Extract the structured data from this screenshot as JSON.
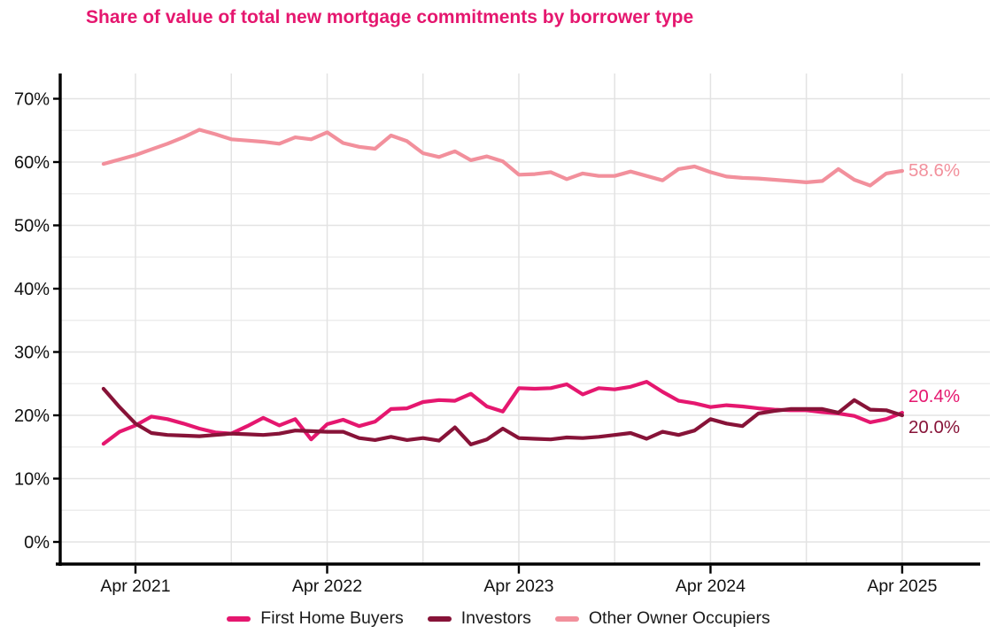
{
  "title": "Share of value of total new mortgage commitments by borrower type",
  "colors": {
    "title": "#E5176F",
    "first_home_buyers": "#E5176F",
    "investors": "#871338",
    "other_owner_occupiers": "#F2909C",
    "axis": "#000000",
    "grid_major": "#E3E3E3",
    "grid_minor": "#EDEDED",
    "tick_text": "#111111"
  },
  "chart_data": {
    "type": "line",
    "x": [
      "Feb 2021",
      "Mar 2021",
      "Apr 2021",
      "May 2021",
      "Jun 2021",
      "Jul 2021",
      "Aug 2021",
      "Sep 2021",
      "Oct 2021",
      "Nov 2021",
      "Dec 2021",
      "Jan 2022",
      "Feb 2022",
      "Mar 2022",
      "Apr 2022",
      "May 2022",
      "Jun 2022",
      "Jul 2022",
      "Aug 2022",
      "Sep 2022",
      "Oct 2022",
      "Nov 2022",
      "Dec 2022",
      "Jan 2023",
      "Feb 2023",
      "Mar 2023",
      "Apr 2023",
      "May 2023",
      "Jun 2023",
      "Jul 2023",
      "Aug 2023",
      "Sep 2023",
      "Oct 2023",
      "Nov 2023",
      "Dec 2023",
      "Jan 2024",
      "Feb 2024",
      "Mar 2024",
      "Apr 2024",
      "May 2024",
      "Jun 2024",
      "Jul 2024",
      "Aug 2024",
      "Sep 2024",
      "Oct 2024",
      "Nov 2024",
      "Dec 2024",
      "Jan 2025",
      "Feb 2025",
      "Mar 2025",
      "Apr 2025"
    ],
    "series": [
      {
        "name": "First Home Buyers",
        "color_key": "first_home_buyers",
        "end_label": "20.4%",
        "values": [
          15.5,
          17.4,
          18.4,
          19.8,
          19.4,
          18.7,
          17.9,
          17.3,
          17.1,
          18.3,
          19.6,
          18.4,
          19.4,
          16.2,
          18.6,
          19.3,
          18.3,
          19.0,
          21.0,
          21.1,
          22.1,
          22.4,
          22.3,
          23.4,
          21.4,
          20.6,
          24.3,
          24.2,
          24.3,
          24.9,
          23.3,
          24.3,
          24.1,
          24.5,
          25.3,
          23.7,
          22.3,
          21.9,
          21.3,
          21.6,
          21.4,
          21.1,
          20.9,
          20.8,
          20.8,
          20.5,
          20.3,
          19.9,
          18.9,
          19.4,
          20.4
        ]
      },
      {
        "name": "Investors",
        "color_key": "investors",
        "end_label": "20.0%",
        "values": [
          24.2,
          21.3,
          18.7,
          17.2,
          16.9,
          16.8,
          16.7,
          16.9,
          17.1,
          17.0,
          16.9,
          17.1,
          17.6,
          17.5,
          17.4,
          17.4,
          16.4,
          16.1,
          16.6,
          16.1,
          16.4,
          16.0,
          18.1,
          15.4,
          16.2,
          17.9,
          16.4,
          16.3,
          16.2,
          16.5,
          16.4,
          16.6,
          16.9,
          17.2,
          16.3,
          17.4,
          16.9,
          17.6,
          19.4,
          18.7,
          18.3,
          20.3,
          20.7,
          21.0,
          21.0,
          21.0,
          20.4,
          22.4,
          20.9,
          20.8,
          20.0
        ]
      },
      {
        "name": "Other Owner Occupiers",
        "color_key": "other_owner_occupiers",
        "end_label": "58.6%",
        "values": [
          59.7,
          60.4,
          61.1,
          62.0,
          62.9,
          63.9,
          65.1,
          64.4,
          63.6,
          63.4,
          63.2,
          62.9,
          63.9,
          63.6,
          64.7,
          63.0,
          62.4,
          62.1,
          64.2,
          63.3,
          61.4,
          60.8,
          61.7,
          60.3,
          60.9,
          60.1,
          58.0,
          58.1,
          58.4,
          57.3,
          58.2,
          57.8,
          57.8,
          58.5,
          57.8,
          57.1,
          58.9,
          59.3,
          58.4,
          57.7,
          57.5,
          57.4,
          57.2,
          57.0,
          56.8,
          57.0,
          58.9,
          57.2,
          56.3,
          58.2,
          58.6
        ]
      }
    ],
    "ylim": [
      0,
      70
    ],
    "y_ticks": [
      {
        "value": 0,
        "label": "0%"
      },
      {
        "value": 10,
        "label": "10%"
      },
      {
        "value": 20,
        "label": "20%"
      },
      {
        "value": 30,
        "label": "30%"
      },
      {
        "value": 40,
        "label": "40%"
      },
      {
        "value": 50,
        "label": "50%"
      },
      {
        "value": 60,
        "label": "60%"
      },
      {
        "value": 70,
        "label": "70%"
      }
    ],
    "x_ticks": [
      {
        "month": "Apr 2021",
        "label": "Apr 2021"
      },
      {
        "month": "Apr 2022",
        "label": "Apr 2022"
      },
      {
        "month": "Apr 2023",
        "label": "Apr 2023"
      },
      {
        "month": "Apr 2024",
        "label": "Apr 2024"
      },
      {
        "month": "Apr 2025",
        "label": "Apr 2025"
      }
    ],
    "grid": "on",
    "legend_position": "bottom"
  }
}
